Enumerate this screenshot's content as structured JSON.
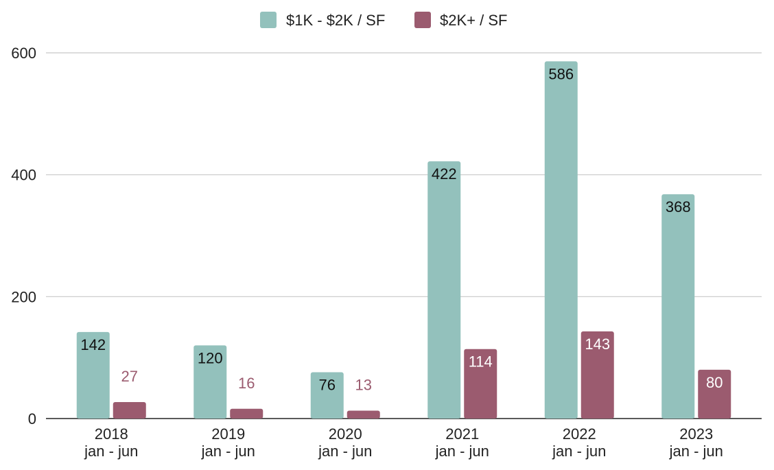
{
  "chart_data": {
    "type": "bar",
    "categories": [
      [
        "2018",
        "jan - jun"
      ],
      [
        "2019",
        "jan - jun"
      ],
      [
        "2020",
        "jan - jun"
      ],
      [
        "2021",
        "jan - jun"
      ],
      [
        "2022",
        "jan - jun"
      ],
      [
        "2023",
        "jan - jun"
      ]
    ],
    "series": [
      {
        "name": "$1K - $2K / SF",
        "color": "#93c1bc",
        "values": [
          142,
          120,
          76,
          422,
          586,
          368
        ]
      },
      {
        "name": "$2K+ / SF",
        "color": "#9b5b6f",
        "values": [
          27,
          16,
          13,
          114,
          143,
          80
        ]
      }
    ],
    "ylim": [
      0,
      600
    ],
    "yticks": [
      0,
      200,
      400,
      600
    ],
    "grid": true,
    "legend_position": "top-center",
    "title": "",
    "xlabel": "",
    "ylabel": ""
  }
}
